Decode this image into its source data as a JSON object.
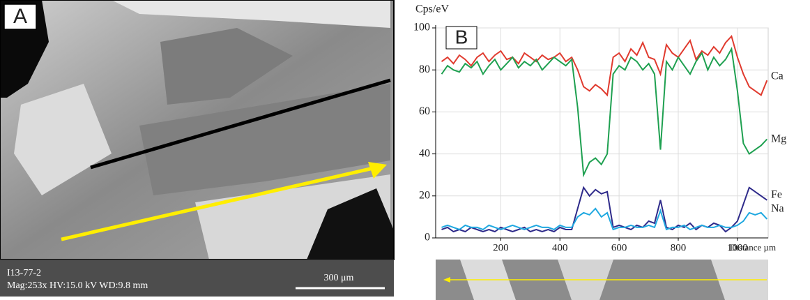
{
  "image_panel": {
    "label": "A",
    "sample": "I13-77-2",
    "info": "Mag:253x  HV:15.0 kV  WD:9.8 mm",
    "scale_bar": "300 μm"
  },
  "chart_data": {
    "type": "line",
    "panel_label": "B",
    "y_label": "Cps/eV",
    "x_label": "Distance µm",
    "x": [
      0,
      20,
      40,
      60,
      80,
      100,
      120,
      140,
      160,
      180,
      200,
      220,
      240,
      260,
      280,
      300,
      320,
      340,
      360,
      380,
      400,
      420,
      440,
      460,
      480,
      500,
      520,
      540,
      560,
      580,
      600,
      620,
      640,
      660,
      680,
      700,
      720,
      740,
      760,
      780,
      800,
      820,
      840,
      860,
      880,
      900,
      920,
      940,
      960,
      980,
      1000,
      1020,
      1040,
      1060,
      1080,
      1100
    ],
    "series": [
      {
        "name": "Ca",
        "color": "#e03a2e",
        "values": [
          84,
          86,
          83,
          87,
          85,
          82,
          86,
          88,
          84,
          87,
          89,
          85,
          86,
          83,
          88,
          86,
          84,
          87,
          85,
          86,
          88,
          84,
          86,
          80,
          72,
          70,
          73,
          71,
          68,
          86,
          88,
          84,
          90,
          87,
          93,
          86,
          85,
          78,
          92,
          88,
          86,
          90,
          94,
          85,
          89,
          87,
          91,
          88,
          93,
          96,
          86,
          78,
          72,
          70,
          68,
          75
        ]
      },
      {
        "name": "Mg",
        "color": "#1ea050",
        "values": [
          78,
          82,
          80,
          79,
          83,
          81,
          84,
          78,
          82,
          85,
          80,
          83,
          86,
          81,
          84,
          82,
          85,
          80,
          83,
          86,
          84,
          82,
          85,
          62,
          30,
          36,
          38,
          35,
          40,
          78,
          82,
          80,
          86,
          84,
          80,
          83,
          78,
          42,
          84,
          80,
          86,
          82,
          78,
          84,
          88,
          80,
          86,
          82,
          85,
          90,
          70,
          45,
          40,
          42,
          44,
          47
        ]
      },
      {
        "name": "Fe",
        "color": "#2e2a8a",
        "values": [
          4,
          5,
          3,
          4,
          3,
          5,
          4,
          3,
          4,
          3,
          5,
          4,
          3,
          4,
          5,
          3,
          4,
          3,
          4,
          3,
          5,
          4,
          4,
          14,
          24,
          20,
          23,
          21,
          22,
          5,
          6,
          5,
          4,
          6,
          5,
          8,
          7,
          18,
          5,
          4,
          6,
          5,
          7,
          4,
          6,
          5,
          7,
          6,
          3,
          5,
          8,
          16,
          24,
          22,
          20,
          18
        ]
      },
      {
        "name": "Na",
        "color": "#1fa8e0",
        "values": [
          5,
          6,
          5,
          4,
          6,
          5,
          5,
          4,
          6,
          5,
          4,
          5,
          6,
          5,
          4,
          5,
          6,
          5,
          5,
          4,
          6,
          5,
          5,
          10,
          12,
          11,
          14,
          10,
          12,
          4,
          5,
          5,
          6,
          5,
          5,
          6,
          5,
          13,
          4,
          5,
          5,
          6,
          4,
          5,
          6,
          5,
          5,
          6,
          5,
          5,
          6,
          8,
          12,
          11,
          12,
          9
        ]
      }
    ],
    "xlim": [
      -20,
      1104
    ],
    "xticks": [
      200,
      400,
      600,
      800,
      1000
    ],
    "ylim": [
      0,
      100
    ],
    "yticks": [
      0,
      20,
      40,
      60,
      80,
      100
    ],
    "grid": true
  }
}
